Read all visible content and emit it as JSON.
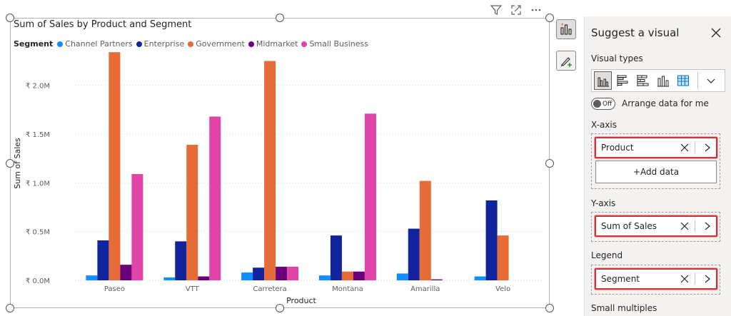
{
  "chart": {
    "title": "Sum of Sales by Product and Segment",
    "legend_title": "Segment",
    "header_icons": [
      "filter-icon",
      "focus-mode-icon",
      "more-options-icon"
    ]
  },
  "chart_data": {
    "type": "bar",
    "title": "Sum of Sales by Product and Segment",
    "xlabel": "Product",
    "ylabel": "Sum of Sales",
    "categories": [
      "Paseo",
      "VTT",
      "Carretera",
      "Montana",
      "Amarilla",
      "Velo"
    ],
    "ylim": [
      0,
      2.4
    ],
    "yticks": [
      0,
      0.5,
      1.0,
      1.5,
      2.0
    ],
    "ytick_labels": [
      "₹ 0.0M",
      "₹ 0.5M",
      "₹ 1.0M",
      "₹ 1.5M",
      "₹ 2.0M"
    ],
    "grid": true,
    "legend_position": "top-left",
    "series": [
      {
        "name": "Channel Partners",
        "color": "#118dff",
        "values": [
          0.05,
          0.03,
          0.08,
          0.05,
          0.07,
          0.04
        ]
      },
      {
        "name": "Enterprise",
        "color": "#12239e",
        "values": [
          0.41,
          0.4,
          0.13,
          0.46,
          0.53,
          0.82
        ]
      },
      {
        "name": "Government",
        "color": "#e66c37",
        "values": [
          2.34,
          1.39,
          2.25,
          0.09,
          1.02,
          0.46
        ]
      },
      {
        "name": "Midmarket",
        "color": "#6b007b",
        "values": [
          0.16,
          0.04,
          0.14,
          0.09,
          0.01,
          0
        ]
      },
      {
        "name": "Small Business",
        "color": "#e044a7",
        "values": [
          1.09,
          1.68,
          0.14,
          1.71,
          0,
          0
        ]
      }
    ]
  },
  "rail": {
    "build_icon": "build-visual-icon",
    "format_icon": "format-visual-icon"
  },
  "pane": {
    "title": "Suggest a visual",
    "visual_types_label": "Visual types",
    "visual_types": [
      "clustered-column-icon",
      "clustered-bar-icon",
      "stacked-bar-icon",
      "stacked-column-icon",
      "table-icon"
    ],
    "toggle_text": "Off",
    "arrange_label": "Arrange data for me",
    "x_axis_label": "X-axis",
    "x_axis_field": "Product",
    "add_data_label": "+Add data",
    "y_axis_label": "Y-axis",
    "y_axis_field": "Sum of Sales",
    "legend_label": "Legend",
    "legend_field": "Segment",
    "small_multiples_label": "Small multiples",
    "accent_color": "#d13438"
  }
}
